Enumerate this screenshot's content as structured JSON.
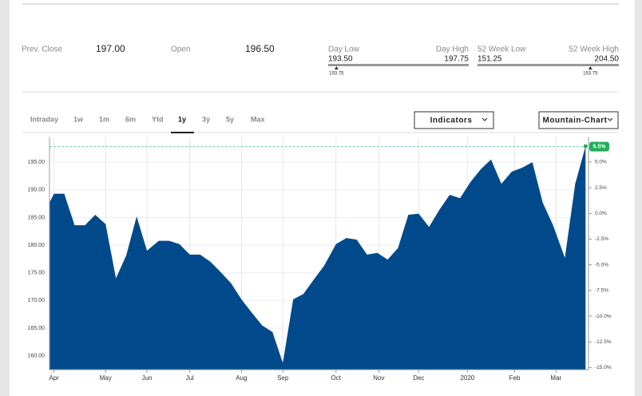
{
  "stats": [
    {
      "label": "Prev. Close",
      "value": "197.00"
    },
    {
      "label": "Open",
      "value": "196.50"
    }
  ],
  "ranges": [
    {
      "low_label": "Day Low",
      "high_label": "Day High",
      "low": {
        "value": 193.5,
        "label": "193.50"
      },
      "high": {
        "value": 197.75,
        "label": "197.75"
      },
      "current": {
        "value": 193.75,
        "label": "193.75"
      }
    },
    {
      "low_label": "52 Week Low",
      "high_label": "52 Week High",
      "low": {
        "value": 151.25,
        "label": "151.25"
      },
      "high": {
        "value": 204.5,
        "label": "204.50"
      },
      "current": {
        "value": 193.75,
        "label": "193.75"
      }
    }
  ],
  "tabs": [
    {
      "label": "Intraday",
      "active": false
    },
    {
      "label": "1w",
      "active": false
    },
    {
      "label": "1m",
      "active": false
    },
    {
      "label": "6m",
      "active": false
    },
    {
      "label": "Ytd",
      "active": false
    },
    {
      "label": "1y",
      "active": true
    },
    {
      "label": "3y",
      "active": false
    },
    {
      "label": "5y",
      "active": false
    },
    {
      "label": "Max",
      "active": false
    }
  ],
  "buttons": [
    "Indicators",
    "Mountain-Chart"
  ],
  "chart_data": {
    "type": "area",
    "color": "#004a8c",
    "x": [
      0,
      3,
      10,
      17,
      24,
      31,
      38,
      45,
      52,
      59,
      66,
      74,
      81,
      88,
      95,
      102,
      109,
      116,
      123,
      130,
      137,
      144,
      151,
      158,
      165,
      172,
      179,
      186,
      194,
      201,
      208,
      215,
      222,
      229,
      236,
      243,
      250,
      257,
      264,
      271,
      278,
      285,
      292,
      299,
      306,
      313,
      320,
      327,
      334,
      341,
      349,
      356,
      363
    ],
    "values": [
      187.7,
      189.3,
      189.3,
      183.6,
      183.6,
      185.5,
      183.8,
      174.0,
      178.2,
      185.2,
      179.0,
      180.8,
      180.8,
      180.2,
      178.3,
      178.3,
      177.0,
      175.1,
      173.1,
      170.2,
      167.8,
      165.5,
      164.3,
      158.7,
      170.2,
      171.2,
      173.8,
      176.3,
      180.2,
      181.3,
      181.0,
      178.3,
      178.6,
      177.4,
      179.5,
      185.5,
      185.7,
      183.3,
      186.4,
      189.1,
      188.5,
      191.4,
      193.7,
      195.5,
      191.1,
      193.3,
      194.0,
      195.0,
      187.7,
      183.6,
      177.7,
      191.1,
      197.9
    ],
    "xlim": [
      0,
      365
    ],
    "xticks": [
      {
        "value": 3,
        "label": "Apr"
      },
      {
        "value": 38,
        "label": "May"
      },
      {
        "value": 66,
        "label": "Jun"
      },
      {
        "value": 95,
        "label": "Jul"
      },
      {
        "value": 130,
        "label": "Aug"
      },
      {
        "value": 158,
        "label": "Sep"
      },
      {
        "value": 194,
        "label": "Oct"
      },
      {
        "value": 223,
        "label": "Nov"
      },
      {
        "value": 250,
        "label": "Dec"
      },
      {
        "value": 283,
        "label": "2020"
      },
      {
        "value": 315,
        "label": "Feb"
      },
      {
        "value": 343,
        "label": "Mar"
      }
    ],
    "ylim": [
      157.5,
      199.5
    ],
    "yticks": [
      {
        "value": 160,
        "label": "160.00"
      },
      {
        "value": 165,
        "label": "165.00"
      },
      {
        "value": 170,
        "label": "170.00"
      },
      {
        "value": 175,
        "label": "175.00"
      },
      {
        "value": 180,
        "label": "180.00"
      },
      {
        "value": 185,
        "label": "185.00"
      },
      {
        "value": 190,
        "label": "190.00"
      },
      {
        "value": 195,
        "label": "195.00"
      }
    ],
    "y2lim": [
      -15.2,
      7.4
    ],
    "y2ticks": [
      {
        "value": -15,
        "label": "-15.0%"
      },
      {
        "value": -12.5,
        "label": "-12.5%"
      },
      {
        "value": -10,
        "label": "-10.0%"
      },
      {
        "value": -7.5,
        "label": "-7.5%"
      },
      {
        "value": -5,
        "label": "-5.0%"
      },
      {
        "value": -2.5,
        "label": "-2.5%"
      },
      {
        "value": 0,
        "label": "0.0%"
      },
      {
        "value": 2.5,
        "label": "2.5%"
      },
      {
        "value": 5,
        "label": "5.0%"
      }
    ],
    "last_change": {
      "value": 6.5,
      "label": "6.5%"
    },
    "grid": true
  }
}
